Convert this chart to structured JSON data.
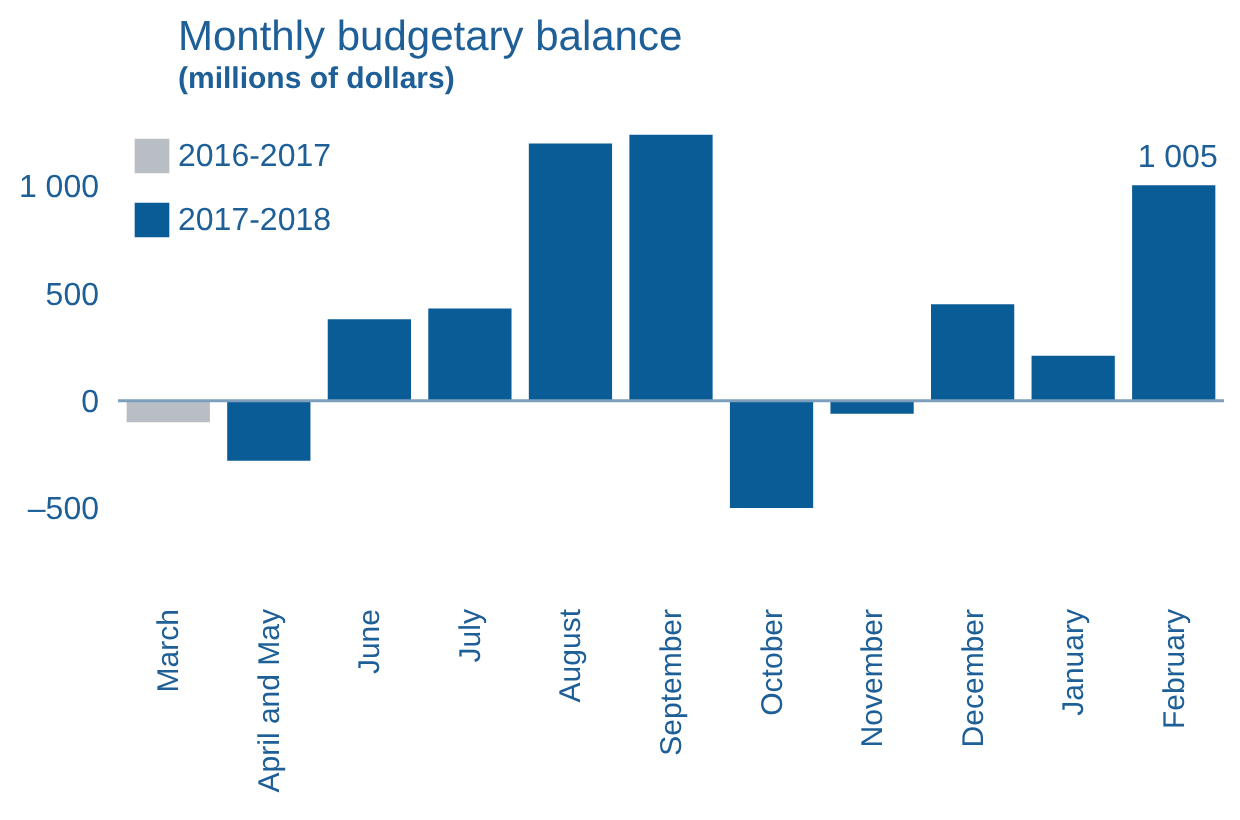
{
  "chart_data": {
    "type": "bar",
    "title": "Monthly budgetary balance",
    "subtitle": "(millions of dollars)",
    "categories": [
      "March",
      "April and May",
      "June",
      "July",
      "August",
      "September",
      "October",
      "November",
      "December",
      "January",
      "February"
    ],
    "series": [
      {
        "name": "2016-2017",
        "color": "#b9bdc4",
        "values": [
          -100,
          null,
          null,
          null,
          null,
          null,
          null,
          null,
          null,
          null,
          null
        ]
      },
      {
        "name": "2017-2018",
        "color": "#0a5c96",
        "values": [
          null,
          -280,
          380,
          430,
          1200,
          1240,
          -500,
          -60,
          450,
          210,
          1005
        ],
        "value_labels": [
          null,
          null,
          null,
          null,
          null,
          null,
          null,
          null,
          null,
          null,
          "1 005"
        ]
      }
    ],
    "ylim": [
      -500,
      1300
    ],
    "yticks": [
      {
        "value": -500,
        "label": "–500"
      },
      0,
      500,
      {
        "value": 1000,
        "label": "1 000"
      }
    ],
    "ref_lines": [
      {
        "axis": "y",
        "value": 0,
        "color": "#7d9fbd"
      }
    ],
    "grid": false,
    "legend": "top left"
  }
}
